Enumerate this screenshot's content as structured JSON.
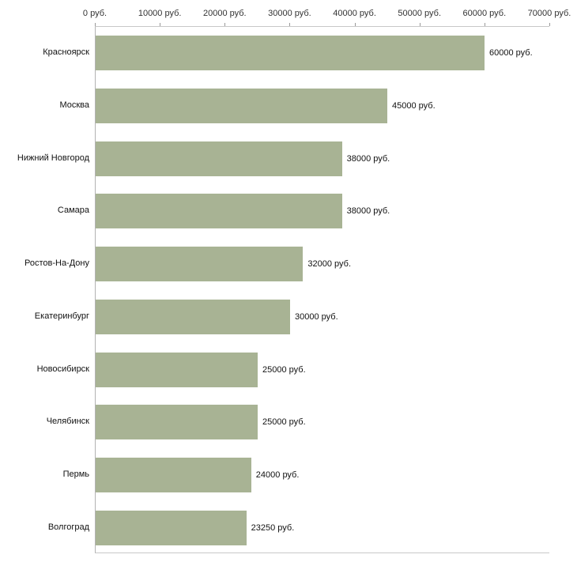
{
  "chart_data": {
    "type": "bar",
    "orientation": "horizontal",
    "title": "",
    "xlabel": "",
    "ylabel": "",
    "xlim": [
      0,
      70000
    ],
    "grid": false,
    "legend": false,
    "bar_color": "#a8b394",
    "axis_line_color": "#b3b3b3",
    "categories": [
      "Красноярск",
      "Москва",
      "Нижний Новгород",
      "Самара",
      "Ростов-На-Дону",
      "Екатеринбург",
      "Новосибирск",
      "Челябинск",
      "Пермь",
      "Волгоград"
    ],
    "values": [
      60000,
      45000,
      38000,
      38000,
      32000,
      30000,
      25000,
      25000,
      24000,
      23250
    ],
    "value_labels": [
      "60000 руб.",
      "45000 руб.",
      "38000 руб.",
      "38000 руб.",
      "32000 руб.",
      "30000 руб.",
      "25000 руб.",
      "25000 руб.",
      "24000 руб.",
      "23250 руб."
    ],
    "x_ticks": [
      "0 руб.",
      "10000 руб.",
      "20000 руб.",
      "30000 руб.",
      "40000 руб.",
      "50000 руб.",
      "60000 руб.",
      "70000 руб."
    ],
    "x_tick_values": [
      0,
      10000,
      20000,
      30000,
      40000,
      50000,
      60000,
      70000
    ]
  }
}
